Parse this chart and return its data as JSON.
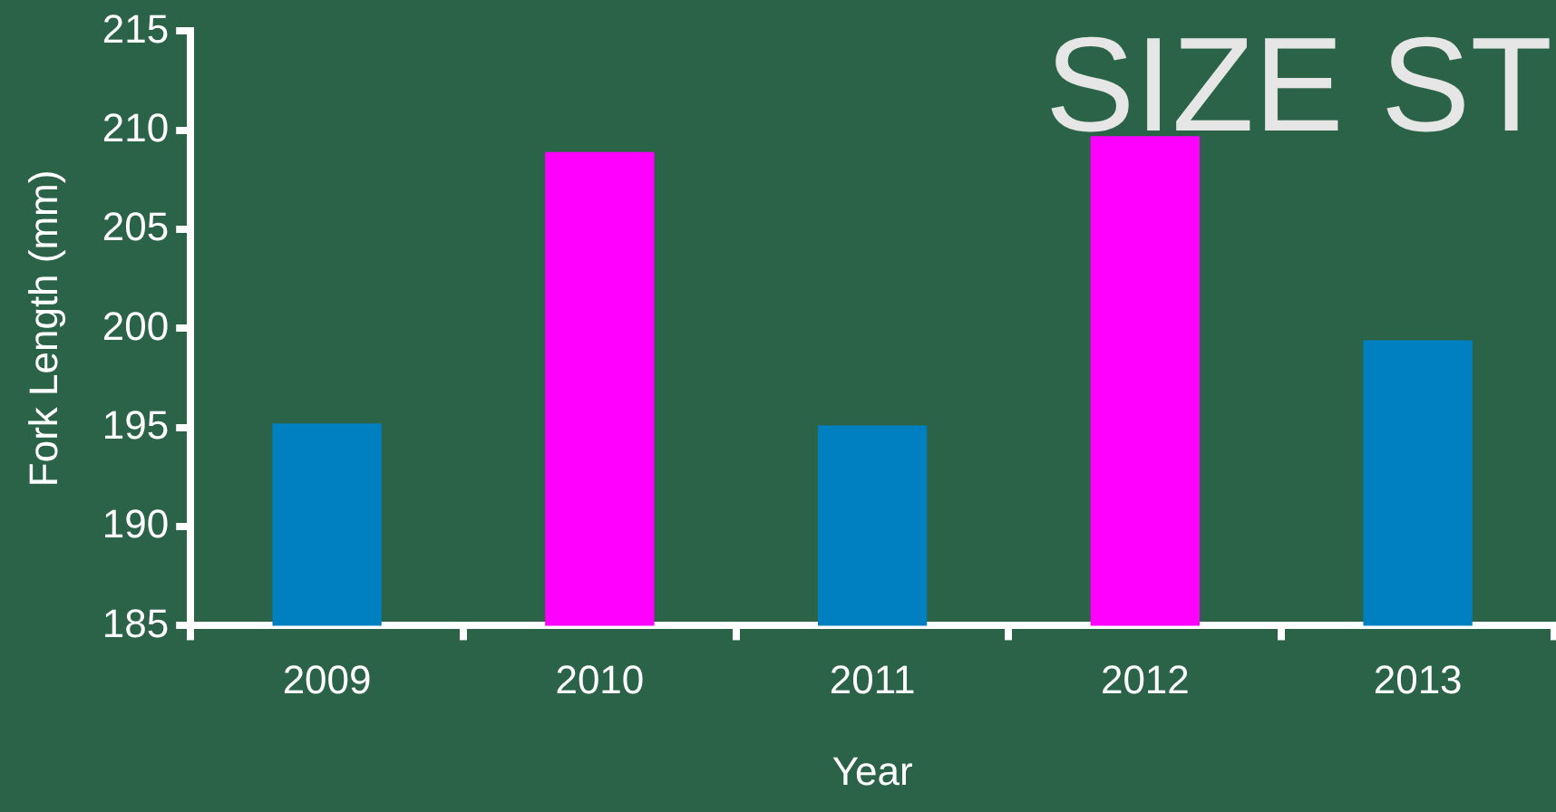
{
  "chart_data": {
    "type": "bar",
    "title": "SIZE ST",
    "xlabel": "Year",
    "ylabel": "Fork Length (mm)",
    "categories": [
      "2009",
      "2010",
      "2011",
      "2012",
      "2013"
    ],
    "values": [
      195.2,
      208.9,
      195.1,
      209.7,
      199.4
    ],
    "colors": [
      "#0080c0",
      "#ff00ff",
      "#0080c0",
      "#ff00ff",
      "#0080c0"
    ],
    "ylim": [
      185,
      215
    ],
    "yticks": [
      185,
      190,
      195,
      200,
      205,
      210,
      215
    ]
  }
}
